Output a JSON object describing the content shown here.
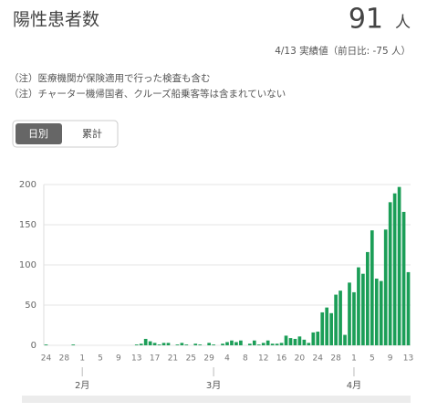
{
  "header": {
    "title": "陽性患者数",
    "value": "91",
    "unit": "人",
    "note": "4/13 実績値（前日比: -75 人）"
  },
  "notes": [
    "（注）医療機関が保険適用で行った検査も含む",
    "（注）チャーター機帰国者、クルーズ船乗客等は含まれていない"
  ],
  "tabs": [
    "日別",
    "累計"
  ],
  "chart_data": {
    "type": "bar",
    "color": "#1b9e57",
    "grid": true,
    "ylim": [
      0,
      200
    ],
    "yticks": [
      0,
      50,
      100,
      150,
      200
    ],
    "categories": [
      "24",
      null,
      null,
      null,
      "28",
      null,
      null,
      null,
      "1",
      null,
      null,
      null,
      "5",
      null,
      null,
      null,
      "9",
      null,
      null,
      null,
      "13",
      null,
      null,
      null,
      "17",
      null,
      null,
      null,
      "21",
      null,
      null,
      null,
      "25",
      null,
      null,
      null,
      "29",
      null,
      null,
      null,
      "4",
      null,
      null,
      null,
      "8",
      null,
      null,
      null,
      "12",
      null,
      null,
      null,
      "16",
      null,
      null,
      null,
      "20",
      null,
      null,
      null,
      "24",
      null,
      null,
      null,
      "28",
      null,
      null,
      null,
      "1",
      null,
      null,
      null,
      "5",
      null,
      null,
      null,
      "9",
      null,
      null,
      null,
      "13"
    ],
    "month_categories": [
      null,
      null,
      null,
      null,
      null,
      null,
      null,
      null,
      "2月",
      null,
      null,
      null,
      null,
      null,
      null,
      null,
      null,
      null,
      null,
      null,
      null,
      null,
      null,
      null,
      null,
      null,
      null,
      null,
      null,
      null,
      null,
      null,
      null,
      null,
      null,
      null,
      null,
      "3月",
      null,
      null,
      null,
      null,
      null,
      null,
      null,
      null,
      null,
      null,
      null,
      null,
      null,
      null,
      null,
      null,
      null,
      null,
      null,
      null,
      null,
      null,
      null,
      null,
      null,
      null,
      null,
      null,
      null,
      null,
      "4月",
      null,
      null,
      null,
      null,
      null,
      null,
      null,
      null,
      null,
      null,
      null,
      null
    ],
    "values": [
      1,
      0,
      0,
      0,
      0,
      0,
      1,
      0,
      0,
      0,
      0,
      0,
      0,
      0,
      0,
      0,
      0,
      0,
      0,
      0,
      1,
      2,
      8,
      5,
      3,
      1,
      3,
      3,
      0,
      1,
      3,
      1,
      0,
      2,
      1,
      0,
      3,
      1,
      0,
      2,
      4,
      6,
      4,
      6,
      0,
      2,
      6,
      1,
      3,
      6,
      2,
      2,
      3,
      12,
      9,
      8,
      11,
      7,
      3,
      16,
      17,
      41,
      47,
      40,
      63,
      68,
      13,
      78,
      66,
      97,
      89,
      116,
      143,
      83,
      80,
      144,
      178,
      189,
      197,
      166,
      91
    ]
  }
}
